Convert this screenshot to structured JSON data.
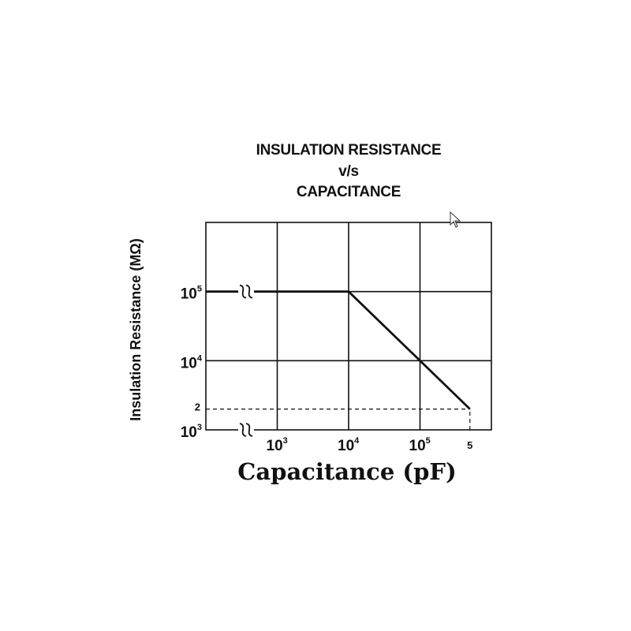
{
  "chart_data": {
    "type": "line",
    "title_lines": [
      "INSULATION RESISTANCE",
      "v/s",
      "CAPACITANCE"
    ],
    "xlabel": "Capacitance (pF)",
    "ylabel": "Insulation Resistance (MΩ)",
    "x_scale": "log",
    "y_scale": "log",
    "x_ticks": [
      {
        "value": 1000,
        "base": "10",
        "exp": "3"
      },
      {
        "value": 10000,
        "base": "10",
        "exp": "4"
      },
      {
        "value": 100000,
        "base": "10",
        "exp": "5"
      }
    ],
    "x_end_label": {
      "value": 500000,
      "label": "5"
    },
    "y_ticks": [
      {
        "value": 1000,
        "base": "10",
        "exp": "3"
      },
      {
        "value": 10000,
        "base": "10",
        "exp": "4"
      },
      {
        "value": 100000,
        "base": "10",
        "exp": "5"
      }
    ],
    "y_end_label": {
      "value": 2000,
      "label": "2"
    },
    "xlim": [
      100,
      1000000
    ],
    "ylim": [
      1000,
      1000000
    ],
    "grid": true,
    "series": [
      {
        "x": [
          100,
          10000,
          100000,
          500000
        ],
        "y": [
          100000,
          100000,
          10000,
          2000
        ]
      }
    ],
    "reference_lines": [
      {
        "style": "dashed",
        "x": [
          100,
          500000
        ],
        "y": [
          2000,
          2000
        ]
      },
      {
        "style": "dashed",
        "x": [
          500000,
          500000
        ],
        "y": [
          1000,
          2000
        ]
      }
    ],
    "axis_breaks": [
      {
        "axis": "x-on-top-line",
        "x": 120000000,
        "y": 100000
      },
      {
        "axis": "x-on-bottom",
        "x": 120000000,
        "y": 1000
      }
    ]
  }
}
